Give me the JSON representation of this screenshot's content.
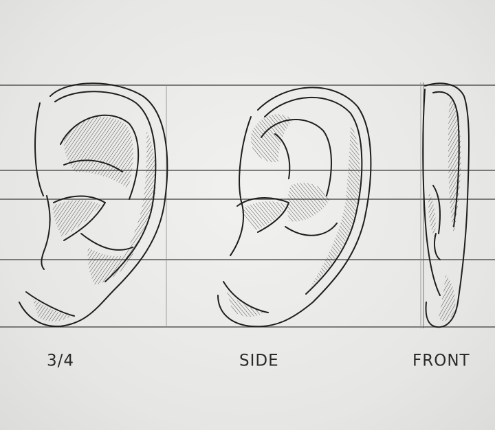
{
  "views": [
    {
      "id": "three-quarter",
      "label": "3/4"
    },
    {
      "id": "side",
      "label": "SIDE"
    },
    {
      "id": "front",
      "label": "FRONT"
    }
  ],
  "colors": {
    "paper": "#ececea",
    "ink": "#1e1e1e",
    "guide": "#3a3a3a"
  }
}
